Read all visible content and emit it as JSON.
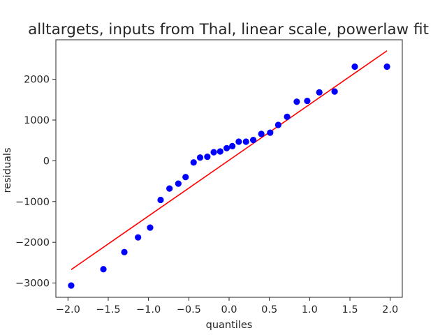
{
  "chart_data": {
    "type": "scatter",
    "title": "alltargets, inputs from Thal, linear scale, powerlaw fit",
    "xlabel": "quantiles",
    "ylabel": "residuals",
    "xlim": [
      -2.15,
      2.15
    ],
    "ylim": [
      -3350,
      2970
    ],
    "grid": false,
    "xticks": [
      -2.0,
      -1.5,
      -1.0,
      -0.5,
      0.0,
      0.5,
      1.0,
      1.5,
      2.0
    ],
    "xtick_labels": [
      "−2.0",
      "−1.5",
      "−1.0",
      "−0.5",
      "0.0",
      "0.5",
      "1.0",
      "1.5",
      "2.0"
    ],
    "yticks": [
      -3000,
      -2000,
      -1000,
      0,
      1000,
      2000
    ],
    "ytick_labels": [
      "−3000",
      "−2000",
      "−1000",
      "0",
      "1000",
      "2000"
    ],
    "points": {
      "color": "#0000ff",
      "x": [
        -1.96,
        -1.56,
        -1.3,
        -1.13,
        -0.98,
        -0.85,
        -0.74,
        -0.63,
        -0.54,
        -0.44,
        -0.36,
        -0.27,
        -0.19,
        -0.11,
        -0.03,
        0.04,
        0.12,
        0.21,
        0.3,
        0.4,
        0.51,
        0.61,
        0.72,
        0.84,
        0.97,
        1.12,
        1.31,
        1.56,
        1.96
      ],
      "y": [
        -3060,
        -2660,
        -2240,
        -1880,
        -1640,
        -960,
        -680,
        -560,
        -400,
        -40,
        80,
        100,
        210,
        230,
        310,
        360,
        470,
        470,
        510,
        660,
        690,
        880,
        1080,
        1450,
        1470,
        1680,
        1700,
        2310,
        2310
      ]
    },
    "fit_line": {
      "color": "#ff0000",
      "x": [
        -1.96,
        1.96
      ],
      "y": [
        -2670,
        2700
      ]
    }
  }
}
